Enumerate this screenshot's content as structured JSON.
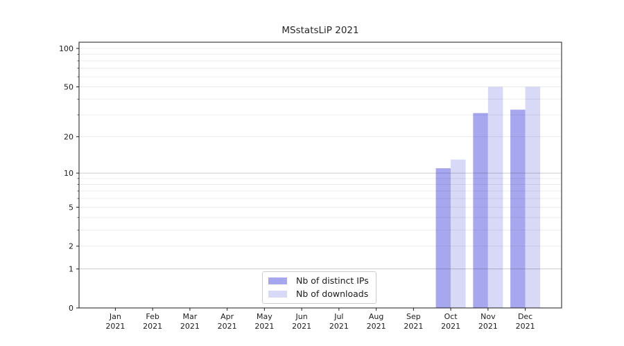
{
  "chart_data": {
    "type": "bar",
    "title": "MSstatsLiP 2021",
    "categories": [
      "Jan 2021",
      "Feb 2021",
      "Mar 2021",
      "Apr 2021",
      "May 2021",
      "Jun 2021",
      "Jul 2021",
      "Aug 2021",
      "Sep 2021",
      "Oct 2021",
      "Nov 2021",
      "Dec 2021"
    ],
    "series": [
      {
        "name": "Nb of distinct IPs",
        "color": "#a7a7f0",
        "values": [
          0,
          0,
          0,
          0,
          0,
          0,
          0,
          0,
          0,
          11,
          31,
          33
        ]
      },
      {
        "name": "Nb of downloads",
        "color": "#d8d8f7",
        "values": [
          0,
          0,
          0,
          0,
          0,
          0,
          0,
          0,
          0,
          13,
          50,
          50
        ]
      }
    ],
    "xlabel": "",
    "ylabel": "",
    "yscale": "log1p",
    "ylim": [
      0,
      110
    ],
    "yticks": [
      0,
      1,
      2,
      5,
      10,
      20,
      50,
      100
    ],
    "minor_gridlines": [
      3,
      4,
      6,
      7,
      8,
      9,
      30,
      40,
      60,
      70,
      80,
      90
    ],
    "major_gridline_values": [
      1,
      10
    ],
    "grid": "on",
    "legend_position": "lower center",
    "colors": {
      "spine": "#1a1a1a",
      "tick_label": "#1a1a1a",
      "major_grid": "rgba(0,0,0,0.20)",
      "minor_grid": "rgba(0,0,0,0.075)"
    }
  }
}
